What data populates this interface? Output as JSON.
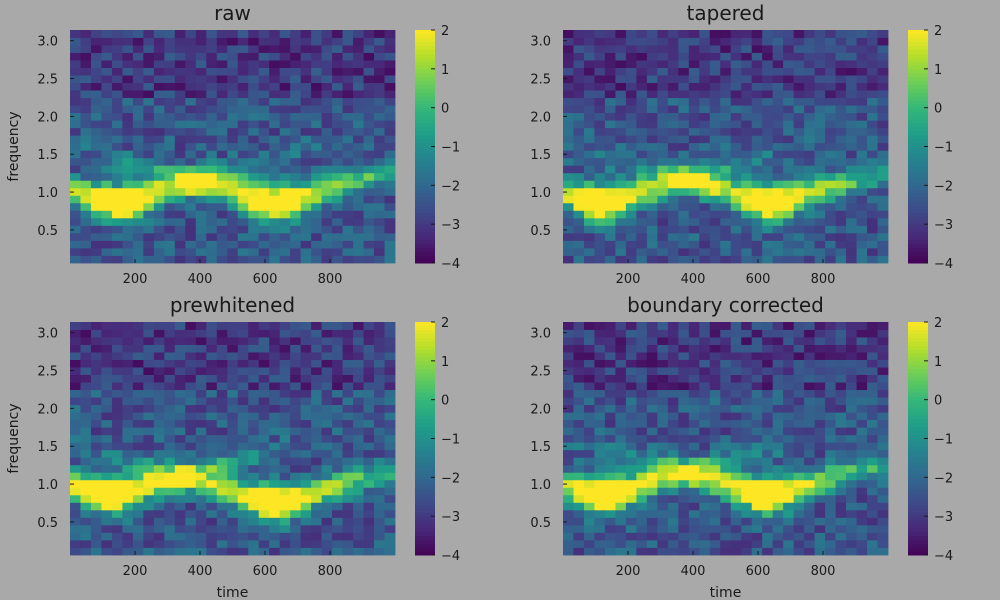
{
  "chart_data": [
    {
      "type": "heatmap",
      "title": "raw",
      "xlabel": "",
      "ylabel": "frequency",
      "x_range": [
        0,
        1000
      ],
      "y_range": [
        0.0625,
        3.1416
      ],
      "x_ticks": [
        "200",
        "400",
        "600",
        "800"
      ],
      "y_ticks": [
        "0.5",
        "1.0",
        "1.5",
        "2.0",
        "2.5",
        "3.0"
      ],
      "colorbar": {
        "range": [
          -4,
          2
        ],
        "ticks": [
          "2",
          "1",
          "0",
          "−1",
          "−2",
          "−3",
          "−4"
        ]
      },
      "n_time": 31,
      "n_freq": 31,
      "ridges": [
        {
          "t0": 150,
          "f0": 0.85,
          "slope": 0.0065
        },
        {
          "t0": 630,
          "f0": 0.85,
          "slope": 0.0065
        }
      ],
      "description": "time-frequency power (log scale) with a bright low-frequency blob near t=100-150 and t=600-680, and diagonal ridges rising to ~2 Hz"
    },
    {
      "type": "heatmap",
      "title": "tapered",
      "xlabel": "",
      "ylabel": "",
      "x_range": [
        0,
        1000
      ],
      "y_range": [
        0.0625,
        3.1416
      ],
      "x_ticks": [
        "200",
        "400",
        "600",
        "800"
      ],
      "y_ticks": [
        "0.5",
        "1.0",
        "1.5",
        "2.0",
        "2.5",
        "3.0"
      ],
      "colorbar": {
        "range": [
          -4,
          2
        ],
        "ticks": [
          "2",
          "1",
          "0",
          "−1",
          "−2",
          "−3",
          "−4"
        ]
      },
      "n_time": 31,
      "n_freq": 31,
      "ridges": [
        {
          "t0": 120,
          "f0": 0.85,
          "slope": 0.0065
        },
        {
          "t0": 640,
          "f0": 0.85,
          "slope": 0.0065
        }
      ]
    },
    {
      "type": "heatmap",
      "title": "prewhitened",
      "xlabel": "time",
      "ylabel": "frequency",
      "x_range": [
        0,
        1000
      ],
      "y_range": [
        0.0625,
        3.1416
      ],
      "x_ticks": [
        "200",
        "400",
        "600",
        "800"
      ],
      "y_ticks": [
        "0.5",
        "1.0",
        "1.5",
        "2.0",
        "2.5",
        "3.0"
      ],
      "colorbar": {
        "range": [
          -4,
          2
        ],
        "ticks": [
          "2",
          "1",
          "0",
          "−1",
          "−2",
          "−3",
          "−4"
        ]
      },
      "n_time": 31,
      "n_freq": 31,
      "ridges": [
        {
          "t0": 130,
          "f0": 0.85,
          "slope": 0.0065
        },
        {
          "t0": 630,
          "f0": 0.75,
          "slope": 0.0065
        }
      ]
    },
    {
      "type": "heatmap",
      "title": "boundary corrected",
      "xlabel": "time",
      "ylabel": "",
      "x_range": [
        0,
        1000
      ],
      "y_range": [
        0.0625,
        3.1416
      ],
      "x_ticks": [
        "200",
        "400",
        "600",
        "800"
      ],
      "y_ticks": [
        "0.5",
        "1.0",
        "1.5",
        "2.0",
        "2.5",
        "3.0"
      ],
      "colorbar": {
        "range": [
          -4,
          2
        ],
        "ticks": [
          "2",
          "1",
          "0",
          "−1",
          "−2",
          "−3",
          "−4"
        ]
      },
      "n_time": 31,
      "n_freq": 31,
      "ridges": [
        {
          "t0": 130,
          "f0": 0.85,
          "slope": 0.0065
        },
        {
          "t0": 630,
          "f0": 0.85,
          "slope": 0.0065
        }
      ]
    }
  ],
  "colors": {
    "background": "#a9a9a9",
    "colormap": "viridis"
  }
}
